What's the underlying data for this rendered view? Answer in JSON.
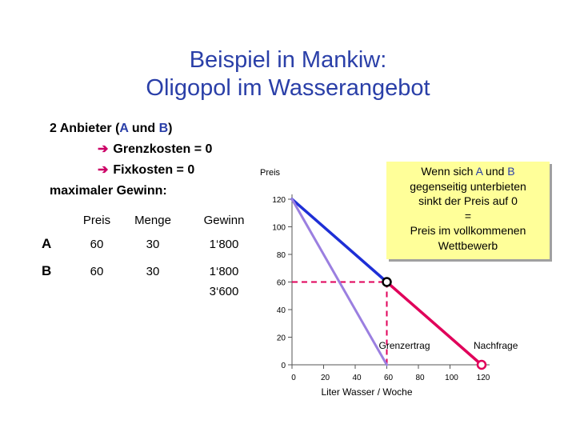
{
  "title_line1": "Beispiel in Mankiw:",
  "title_line2": "Oligopol im Wasserangebot",
  "intro": {
    "line1_prefix": "2 Anbieter (",
    "a": "A",
    "line1_mid": " und ",
    "b": "B",
    "line1_suffix": ")",
    "line2": "Grenzkosten = 0",
    "line3": "Fixkosten = 0",
    "line4": "maximaler Gewinn:"
  },
  "table": {
    "headers": [
      "",
      "Preis",
      "Menge",
      "Gewinn"
    ],
    "rows": [
      {
        "label": "A",
        "preis": "60",
        "menge": "30",
        "gewinn": "1‘800"
      },
      {
        "label": "B",
        "preis": "60",
        "menge": "30",
        "gewinn": "1‘800"
      }
    ],
    "total": "3‘600"
  },
  "callout": {
    "l1_prefix": "Wenn sich ",
    "a": "A",
    "l1_mid": " und ",
    "b": "B",
    "l2": "gegenseitig unterbieten",
    "l3": "sinkt der Preis auf 0",
    "l4": "=",
    "l5": "Preis im vollkommenen",
    "l6": "Wettbewerb"
  },
  "chart_data": {
    "type": "line",
    "ylabel": "Preis",
    "xlabel": "Liter Wasser / Woche",
    "xlim": [
      0,
      120
    ],
    "ylim": [
      0,
      120
    ],
    "x_ticks": [
      0,
      20,
      40,
      60,
      80,
      100,
      120
    ],
    "y_ticks": [
      0,
      20,
      40,
      60,
      80,
      100,
      120
    ],
    "series": [
      {
        "name": "Nachfrage",
        "color": "#1e2fd6",
        "points": [
          [
            0,
            120
          ],
          [
            60,
            60
          ]
        ]
      },
      {
        "name": "Nachfrage",
        "color": "#e0005a",
        "points": [
          [
            60,
            60
          ],
          [
            120,
            0
          ]
        ]
      },
      {
        "name": "Grenzertrag",
        "color": "#9b7fe0",
        "points": [
          [
            0,
            120
          ],
          [
            60,
            0
          ]
        ]
      }
    ],
    "markers": [
      [
        60,
        60
      ],
      [
        120,
        0
      ]
    ],
    "guide_lines": {
      "x": 60,
      "y": 60,
      "color": "#e0005a"
    },
    "labels": {
      "nachfrage": "Nachfrage",
      "grenzertrag": "Grenzertrag"
    }
  }
}
